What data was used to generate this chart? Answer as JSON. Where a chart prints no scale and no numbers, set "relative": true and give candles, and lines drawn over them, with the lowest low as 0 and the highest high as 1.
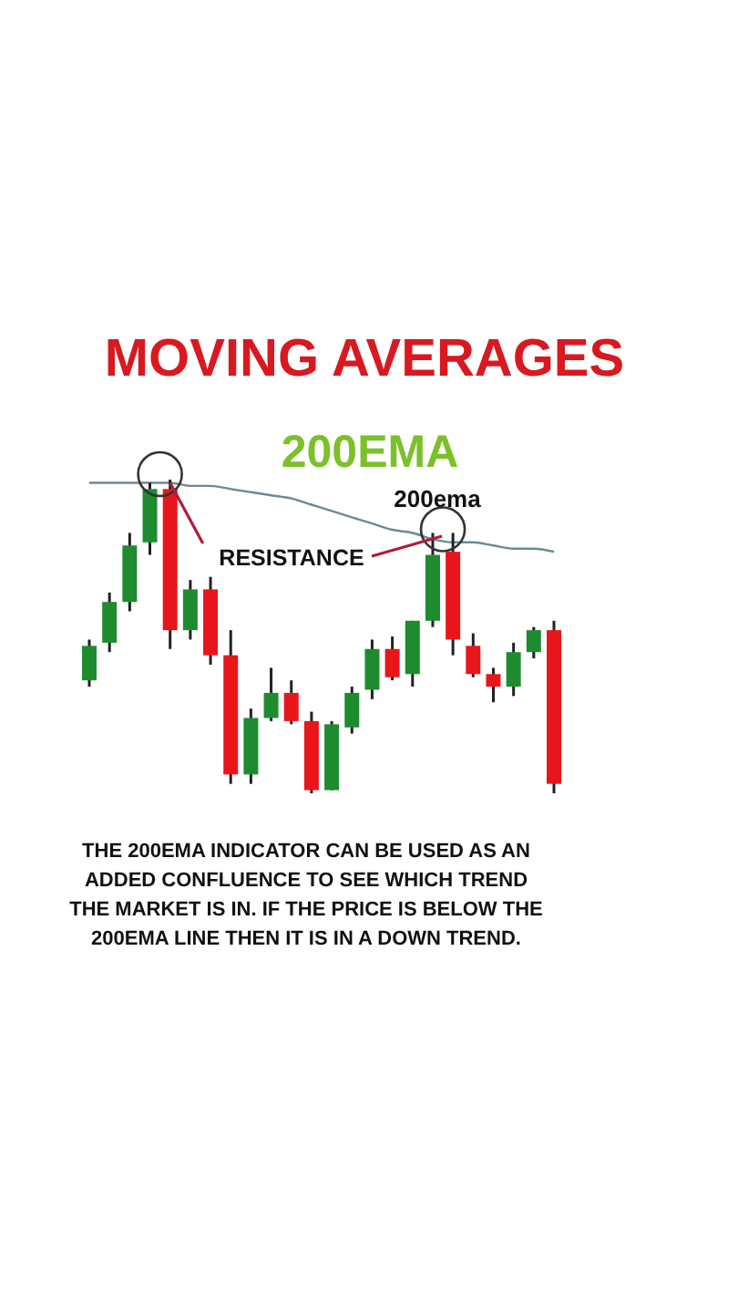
{
  "chart_data": {
    "type": "candlestick",
    "title": "MOVING AVERAGES",
    "relative": true,
    "categories": [
      null,
      null,
      null,
      null,
      null,
      null,
      null,
      null,
      null,
      null,
      null,
      null,
      null,
      null,
      null,
      null,
      null,
      null,
      null,
      null,
      null,
      null,
      null,
      null
    ],
    "ohlc": [
      [
        0.36,
        0.49,
        0.34,
        0.47
      ],
      [
        0.48,
        0.64,
        0.45,
        0.61
      ],
      [
        0.61,
        0.83,
        0.58,
        0.79
      ],
      [
        0.8,
        0.99,
        0.76,
        0.97
      ],
      [
        0.97,
        1,
        0.46,
        0.52
      ],
      [
        0.52,
        0.68,
        0.49,
        0.65
      ],
      [
        0.65,
        0.69,
        0.41,
        0.44
      ],
      [
        0.44,
        0.52,
        0.03,
        0.06
      ],
      [
        0.06,
        0.27,
        0.03,
        0.24
      ],
      [
        0.24,
        0.4,
        0.23,
        0.32
      ],
      [
        0.32,
        0.36,
        0.22,
        0.23
      ],
      [
        0.23,
        0.26,
        0,
        0.01
      ],
      [
        0.01,
        0.23,
        0.01,
        0.22
      ],
      [
        0.21,
        0.34,
        0.19,
        0.32
      ],
      [
        0.33,
        0.49,
        0.3,
        0.46
      ],
      [
        0.46,
        0.5,
        0.36,
        0.37
      ],
      [
        0.38,
        0.55,
        0.34,
        0.55
      ],
      [
        0.55,
        0.83,
        0.53,
        0.76
      ],
      [
        0.77,
        0.83,
        0.44,
        0.49
      ],
      [
        0.47,
        0.51,
        0.37,
        0.38
      ],
      [
        0.38,
        0.4,
        0.29,
        0.34
      ],
      [
        0.34,
        0.48,
        0.31,
        0.45
      ],
      [
        0.45,
        0.53,
        0.43,
        0.52
      ],
      [
        0.52,
        0.55,
        0,
        0.03
      ]
    ],
    "colors": [
      "#1e8c2e",
      "#1e8c2e",
      "#1e8c2e",
      "#1e8c2e",
      "#e8161b",
      "#1e8c2e",
      "#e8161b",
      "#e8161b",
      "#1e8c2e",
      "#1e8c2e",
      "#e8161b",
      "#e8161b",
      "#1e8c2e",
      "#1e8c2e",
      "#1e8c2e",
      "#e8161b",
      "#1e8c2e",
      "#1e8c2e",
      "#e8161b",
      "#e8161b",
      "#e8161b",
      "#1e8c2e",
      "#1e8c2e",
      "#e8161b"
    ],
    "series": [
      {
        "type": "line",
        "color": "#6b8a94",
        "values": [
          0.99,
          0.99,
          0.99,
          0.99,
          0.99,
          0.98,
          0.98,
          0.97,
          0.96,
          0.95,
          0.94,
          0.92,
          0.9,
          0.88,
          0.86,
          0.84,
          0.83,
          0.81,
          0.8,
          0.8,
          0.79,
          0.78,
          0.78,
          0.77
        ]
      }
    ],
    "annotations": [
      "200EMA",
      "200ema",
      "RESISTANCE",
      "THE 200EMA  INDICATOR CAN BE USED AS AN",
      "ADDED CONFLUENCE TO SEE WHICH TREND",
      "THE MARKET IS IN. IF THE PRICE IS BELOW THE",
      "200EMA LINE THEN IT IS IN A DOWN TREND."
    ]
  }
}
